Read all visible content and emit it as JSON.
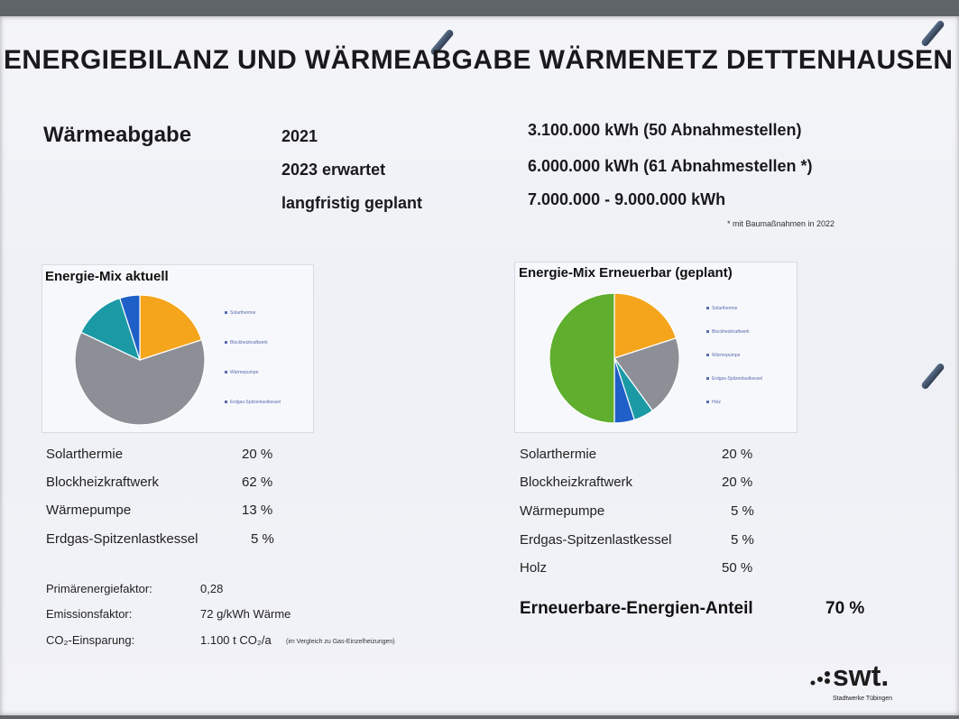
{
  "title": "ENERGIEBILANZ UND WÄRMEABGABE WÄRMENETZ DETTENHAUSEN",
  "waermeabgabe": {
    "heading": "Wärmeabgabe",
    "rows": [
      {
        "label": "2021",
        "value": "3.100.000 kWh (50 Abnahmestellen)"
      },
      {
        "label": "2023 erwartet",
        "value": "6.000.000 kWh (61 Abnahmestellen *)"
      },
      {
        "label": "langfristig geplant",
        "value": "7.000.000 - 9.000.000 kWh"
      }
    ],
    "footnote": "* mit Baumaßnahmen in 2022"
  },
  "mix_aktuell": {
    "chart_title": "Energie-Mix aktuell",
    "legend": [
      "Solarthermie",
      "Blockheizkraftwerk",
      "Wärmepumpe",
      "Erdgas-Spitzenlastkessel"
    ],
    "table": [
      {
        "label": "Solarthermie",
        "value": "20 %"
      },
      {
        "label": "Blockheizkraftwerk",
        "value": "62 %"
      },
      {
        "label": "Wärmepumpe",
        "value": "13 %"
      },
      {
        "label": "Erdgas-Spitzenlastkessel",
        "value": "5 %"
      }
    ],
    "facts": [
      {
        "label": "Primärenergiefaktor:",
        "value": "0,28",
        "note": ""
      },
      {
        "label": "Emissionsfaktor:",
        "value": "72 g/kWh Wärme",
        "note": ""
      },
      {
        "label": "CO₂-Einsparung:",
        "value": "1.100 t CO₂/a",
        "note": "(im Vergleich zu Gas-Einzelheizungen)"
      }
    ]
  },
  "mix_geplant": {
    "chart_title": "Energie-Mix Erneuerbar (geplant)",
    "legend": [
      "Solarthermie",
      "Blockheizkraftwerk",
      "Wärmepumpe",
      "Erdgas-Spitzenlastkessel",
      "Holz"
    ],
    "table": [
      {
        "label": "Solarthermie",
        "value": "20 %"
      },
      {
        "label": "Blockheizkraftwerk",
        "value": "20 %"
      },
      {
        "label": "Wärmepumpe",
        "value": "5 %"
      },
      {
        "label": "Erdgas-Spitzenlastkessel",
        "value": "5 %"
      },
      {
        "label": "Holz",
        "value": "50 %"
      }
    ],
    "share_label": "Erneuerbare-Energien-Anteil",
    "share_value": "70 %"
  },
  "logo": {
    "text": "swt.",
    "subtitle": "Stadtwerke Tübingen"
  },
  "colors": {
    "solarthermie": "#f4a51c",
    "bhkw": "#8c8f96",
    "waermepumpe": "#1b9aa6",
    "erdgas": "#1f5fc8",
    "holz": "#5fae2e"
  },
  "chart_data": [
    {
      "type": "pie",
      "title": "Energie-Mix aktuell",
      "categories": [
        "Solarthermie",
        "Blockheizkraftwerk",
        "Wärmepumpe",
        "Erdgas-Spitzenlastkessel"
      ],
      "values": [
        20,
        62,
        13,
        5
      ],
      "colors": [
        "#f4a51c",
        "#8c8f96",
        "#1b9aa6",
        "#1f5fc8"
      ],
      "legend_placement": "right"
    },
    {
      "type": "pie",
      "title": "Energie-Mix Erneuerbar (geplant)",
      "categories": [
        "Solarthermie",
        "Blockheizkraftwerk",
        "Wärmepumpe",
        "Erdgas-Spitzenlastkessel",
        "Holz"
      ],
      "values": [
        20,
        20,
        5,
        5,
        50
      ],
      "colors": [
        "#f4a51c",
        "#8c8f96",
        "#1b9aa6",
        "#1f5fc8",
        "#5fae2e"
      ],
      "legend_placement": "right"
    }
  ]
}
